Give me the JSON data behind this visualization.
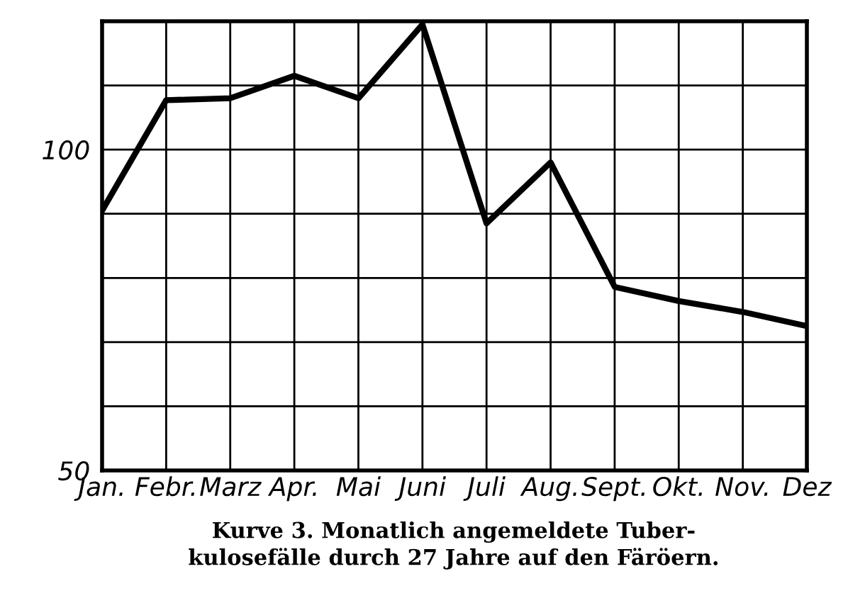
{
  "chart_data": {
    "type": "line",
    "categories": [
      "Jan.",
      "Febr.",
      "Marz",
      "Apr.",
      "Mai",
      "Juni",
      "Juli",
      "Aug.",
      "Sept.",
      "Okt.",
      "Nov.",
      "Dez"
    ],
    "series": [
      {
        "color": "#000000",
        "values": [
          90.5,
          107.7,
          108,
          111.5,
          108,
          119.5,
          88.5,
          98,
          78.6,
          76.4,
          74.7,
          72.5
        ]
      }
    ],
    "ylim": [
      50,
      120
    ],
    "yticks": [
      50,
      {
        "value": 60,
        "label": null
      },
      {
        "value": 70,
        "label": null
      },
      {
        "value": 80,
        "label": null
      },
      {
        "value": 90,
        "label": null
      },
      100,
      {
        "value": 110,
        "label": null
      },
      {
        "value": 120,
        "label": null
      }
    ],
    "grid": true,
    "marker": "none",
    "line_style": "solid",
    "annotations": [
      "Kurve 3. Monatlich angemeldete Tuber-\nkulosefälle durch 27 Jahre auf den Färöern."
    ]
  }
}
